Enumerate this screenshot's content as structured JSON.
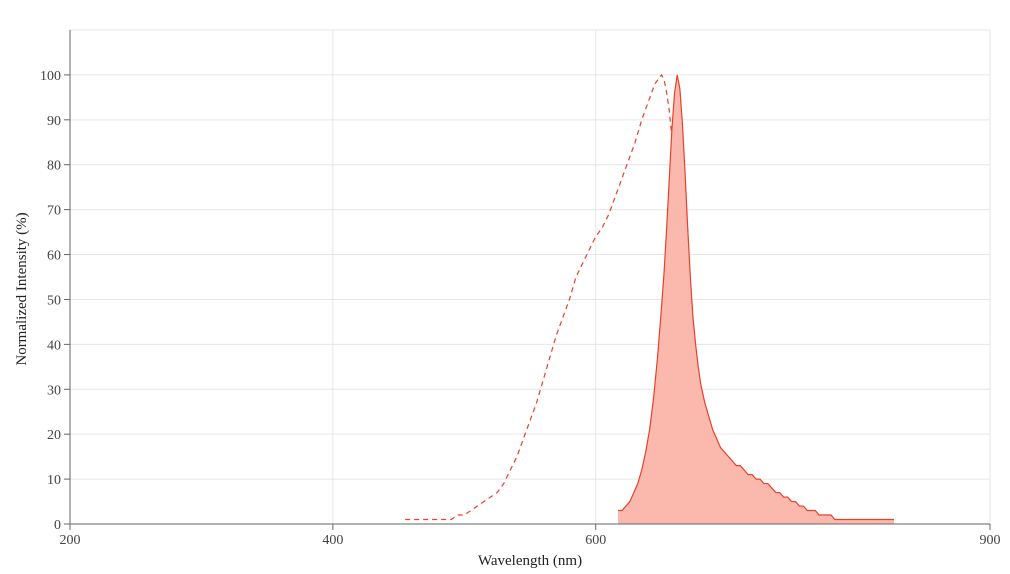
{
  "chart_data": {
    "type": "area",
    "title": "",
    "xlabel": "Wavelength (nm)",
    "ylabel": "Normalized Intensity (%)",
    "xlim": [
      200,
      900
    ],
    "ylim": [
      0,
      110
    ],
    "x_ticks": [
      200,
      400,
      600,
      900
    ],
    "y_ticks": [
      0,
      10,
      20,
      30,
      40,
      50,
      60,
      70,
      80,
      90,
      100
    ],
    "grid": true,
    "legend": "none",
    "series": [
      {
        "style": "dashed-line",
        "color": "#e8402a",
        "x": [
          455,
          470,
          480,
          490,
          495,
          500,
          505,
          510,
          515,
          520,
          525,
          530,
          535,
          540,
          545,
          550,
          555,
          560,
          565,
          570,
          575,
          580,
          585,
          590,
          595,
          600,
          605,
          610,
          615,
          620,
          625,
          630,
          635,
          640,
          645,
          650,
          652,
          654,
          656,
          658,
          660,
          662,
          664,
          666,
          668,
          670,
          672,
          674,
          676,
          678,
          680,
          682,
          685,
          688,
          692,
          696,
          700,
          705
        ],
        "y": [
          1,
          1,
          1,
          1,
          2,
          2,
          3,
          4,
          5,
          6,
          7,
          9,
          12,
          15,
          19,
          23,
          27,
          32,
          37,
          42,
          46,
          50,
          55,
          58,
          61,
          64,
          66,
          69,
          73,
          77,
          81,
          85,
          90,
          94,
          98,
          100,
          99,
          96,
          92,
          86,
          78,
          68,
          57,
          45,
          34,
          24,
          16,
          10,
          6,
          4,
          3,
          2,
          2,
          1,
          1,
          1,
          1,
          1
        ]
      },
      {
        "style": "filled-area",
        "color": "#e8402a",
        "fill": "#fbb9ad",
        "x": [
          617,
          620,
          623,
          626,
          629,
          632,
          635,
          638,
          641,
          644,
          647,
          650,
          652,
          654,
          656,
          658,
          660,
          662,
          664,
          666,
          668,
          670,
          672,
          674,
          676,
          678,
          680,
          683,
          686,
          689,
          692,
          695,
          698,
          701,
          704,
          707,
          710,
          713,
          716,
          719,
          722,
          725,
          728,
          731,
          734,
          737,
          740,
          743,
          746,
          749,
          752,
          755,
          758,
          761,
          764,
          767,
          770,
          773,
          776,
          779,
          782,
          785,
          788,
          791,
          794,
          797,
          800,
          803,
          806,
          809,
          812,
          815,
          818,
          821,
          824,
          827
        ],
        "y": [
          3,
          3,
          4,
          5,
          7,
          9,
          12,
          16,
          21,
          28,
          37,
          48,
          56,
          66,
          77,
          88,
          96,
          100,
          97,
          89,
          78,
          66,
          55,
          46,
          40,
          35,
          31,
          27,
          24,
          21,
          19,
          17,
          16,
          15,
          14,
          13,
          13,
          12,
          11,
          11,
          10,
          10,
          9,
          9,
          8,
          7,
          7,
          6,
          6,
          5,
          5,
          4,
          4,
          3,
          3,
          3,
          2,
          2,
          2,
          2,
          1,
          1,
          1,
          1,
          1,
          1,
          1,
          1,
          1,
          1,
          1,
          1,
          1,
          1,
          1,
          1
        ]
      }
    ]
  }
}
